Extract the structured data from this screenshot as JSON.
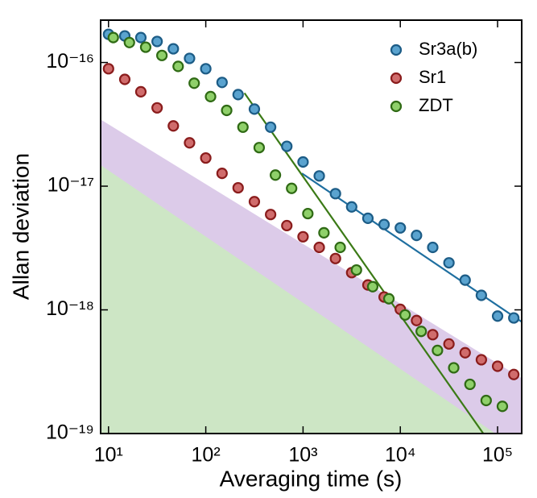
{
  "chart_data": {
    "type": "scatter",
    "xlabel": "Averaging time (s)",
    "ylabel": "Allan deviation",
    "log_x": true,
    "log_y": true,
    "xlim": [
      8.3,
      177000
    ],
    "ylim": [
      1e-19,
      2.2e-16
    ],
    "xticks": [
      {
        "value": 10,
        "label": "10¹"
      },
      {
        "value": 100,
        "label": "10²"
      },
      {
        "value": 1000,
        "label": "10³"
      },
      {
        "value": 10000,
        "label": "10⁴"
      },
      {
        "value": 100000,
        "label": "10⁵"
      }
    ],
    "yticks": [
      {
        "value": 1e-19,
        "label": "10⁻¹⁹"
      },
      {
        "value": 1e-18,
        "label": "10⁻¹⁸"
      },
      {
        "value": 1e-17,
        "label": "10⁻¹⁷"
      },
      {
        "value": 1e-16,
        "label": "10⁻¹⁶"
      }
    ],
    "legend": "upper right",
    "bands": [
      {
        "color": "#dccbe9",
        "x": [
          8.3,
          177000
        ],
        "values": [
          3.46e-17,
          2.8e-19
        ]
      },
      {
        "color": "#cde6c5",
        "x": [
          8.3,
          95000
        ],
        "values": [
          1.48e-17,
          1e-19
        ]
      }
    ],
    "series": [
      {
        "name": "Sr3a(b)",
        "color": "#5aa3cf",
        "edgecolor": "#1c5c86",
        "x": [
          10,
          14.7,
          21.5,
          31.6,
          46.4,
          68.1,
          100,
          147,
          215,
          316,
          464,
          681,
          1000,
          1468,
          2154,
          3162,
          4642,
          6813,
          10000,
          14678,
          21544,
          31623,
          46416,
          68129,
          100000,
          146780
        ],
        "values": [
          1.69e-16,
          1.64e-16,
          1.59e-16,
          1.48e-16,
          1.29e-16,
          1.08e-16,
          8.9e-17,
          6.9e-17,
          5.5e-17,
          4.2e-17,
          3e-17,
          2.1e-17,
          1.57e-17,
          1.21e-17,
          8.7e-18,
          6.8e-18,
          5.5e-18,
          4.9e-18,
          4.6e-18,
          4e-18,
          3.2e-18,
          2.4e-18,
          1.74e-18,
          1.31e-18,
          8.9e-19,
          8.6e-19
        ]
      },
      {
        "name": "Sr1",
        "color": "#d06c6c",
        "edgecolor": "#8a1c1c",
        "x": [
          10,
          14.7,
          21.5,
          31.6,
          46.4,
          68.1,
          100,
          147,
          215,
          316,
          464,
          681,
          1000,
          1468,
          2154,
          3162,
          4642,
          6813,
          10000,
          14678,
          21544,
          31623,
          46416,
          68129,
          100000,
          146780
        ],
        "values": [
          8.9e-17,
          7.3e-17,
          5.8e-17,
          4.3e-17,
          3.07e-17,
          2.24e-17,
          1.69e-17,
          1.27e-17,
          9.7e-18,
          7.5e-18,
          5.9e-18,
          4.8e-18,
          3.9e-18,
          3.2e-18,
          2.6e-18,
          2e-18,
          1.59e-18,
          1.27e-18,
          1.01e-18,
          8.2e-19,
          6.3e-19,
          5.3e-19,
          4.5e-19,
          3.95e-19,
          3.5e-19,
          3e-19
        ]
      },
      {
        "name": "ZDT",
        "color": "#8fd06a",
        "edgecolor": "#2f6a14",
        "x": [
          11.2,
          16.4,
          24.1,
          35.4,
          52,
          76,
          112,
          164,
          241,
          354,
          520,
          763,
          1120,
          1640,
          2410,
          3540,
          5200,
          7630,
          11200,
          16400,
          24100,
          35400,
          52000,
          76300,
          112000
        ],
        "values": [
          1.59e-16,
          1.45e-16,
          1.33e-16,
          1.14e-16,
          9.3e-17,
          6.8e-17,
          5.3e-17,
          4.1e-17,
          3e-17,
          2.05e-17,
          1.23e-17,
          9.6e-18,
          6e-18,
          4.2e-18,
          3.2e-18,
          2.1e-18,
          1.54e-18,
          1.23e-18,
          9.1e-19,
          6.7e-19,
          4.7e-19,
          3.4e-19,
          2.5e-19,
          1.85e-19,
          1.66e-19
        ]
      }
    ],
    "fits": [
      {
        "color": "#1f6fa0",
        "x": [
          973,
          177000
        ],
        "values": [
          1.27e-17,
          8e-19
        ]
      },
      {
        "color": "#3b7a16",
        "x": [
          250,
          71300
        ],
        "values": [
          5.66e-17,
          1e-19
        ]
      }
    ]
  }
}
